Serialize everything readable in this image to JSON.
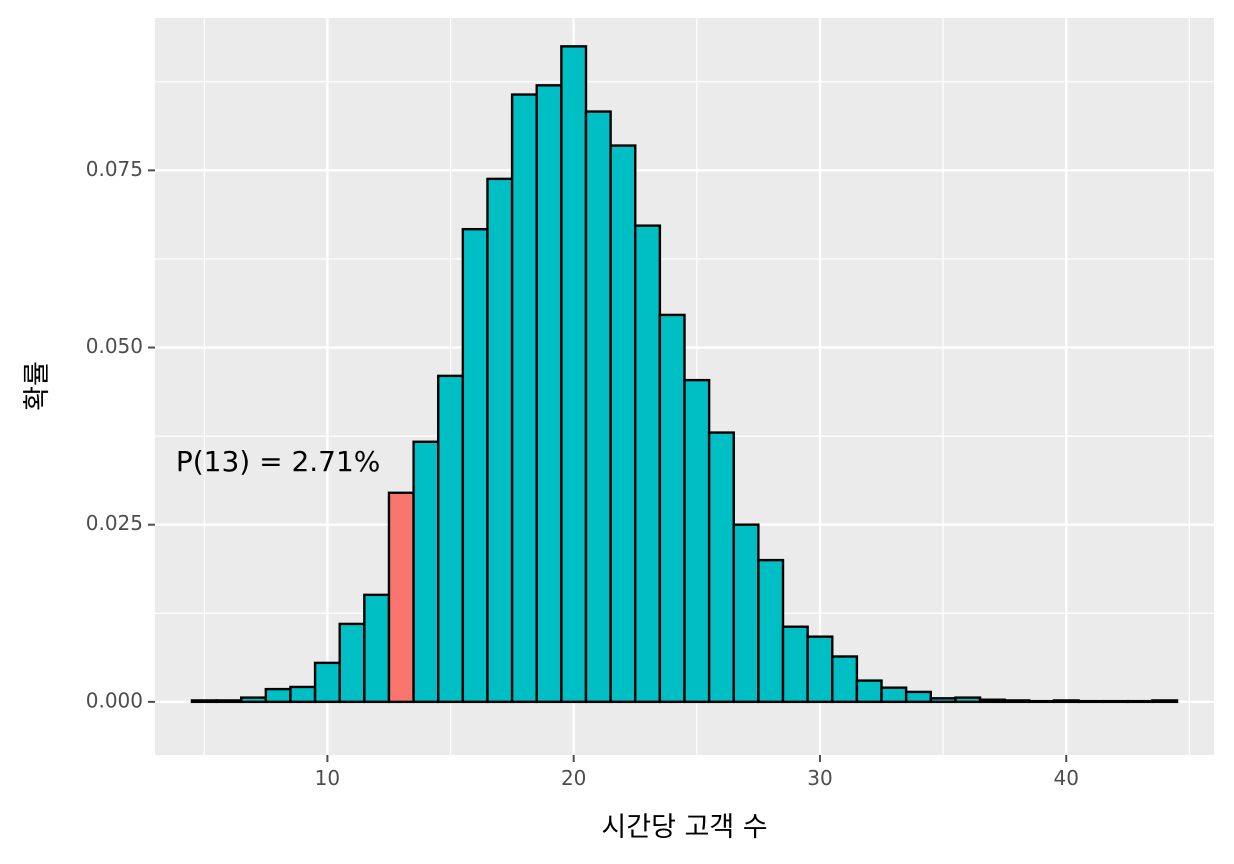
{
  "chart_data": {
    "type": "bar",
    "xlabel": "시간당 고객 수",
    "ylabel": "확률",
    "xlim": [
      3,
      46
    ],
    "ylim": [
      -0.0075,
      0.0965
    ],
    "x_ticks": [
      10,
      20,
      30,
      40
    ],
    "y_ticks": [
      0.0,
      0.025,
      0.05,
      0.075
    ],
    "y_tick_labels": [
      "0.000",
      "0.025",
      "0.050",
      "0.075"
    ],
    "x_minor_grid": [
      5,
      15,
      25,
      35,
      45
    ],
    "y_minor_grid": [
      0.0125,
      0.0375,
      0.0625,
      0.0875
    ],
    "grid": true,
    "bar_width": 1,
    "x": [
      5,
      6,
      7,
      8,
      9,
      10,
      11,
      12,
      13,
      14,
      15,
      16,
      17,
      18,
      19,
      20,
      21,
      22,
      23,
      24,
      25,
      26,
      27,
      28,
      29,
      30,
      31,
      32,
      33,
      34,
      35,
      36,
      37,
      38,
      39,
      40,
      41,
      42,
      43,
      44
    ],
    "values": [
      0.0002,
      0.0002,
      0.0006,
      0.0018,
      0.0021,
      0.0055,
      0.011,
      0.0151,
      0.0295,
      0.0367,
      0.046,
      0.0667,
      0.0738,
      0.0857,
      0.087,
      0.0925,
      0.0833,
      0.0785,
      0.0672,
      0.0546,
      0.0454,
      0.038,
      0.025,
      0.02,
      0.0106,
      0.0092,
      0.0064,
      0.003,
      0.002,
      0.0014,
      0.0005,
      0.0006,
      0.0003,
      0.0002,
      0.0001,
      0.0002,
      0.0001,
      0.0001,
      0.0001,
      0.0002
    ],
    "highlight_x": 13,
    "colors": {
      "bar_fill": "#00BFC4",
      "highlight_fill": "#F8766D",
      "bar_outline": "#000000",
      "panel_background": "#EBEBEB",
      "grid": "#FFFFFF",
      "tick_text": "#4D4D4D"
    },
    "annotations": [
      {
        "text": "P(13) = 2.71%",
        "x": 8,
        "y": 0.0337
      }
    ]
  }
}
